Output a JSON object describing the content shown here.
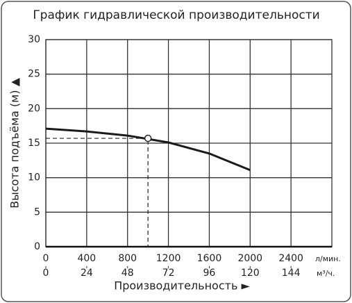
{
  "chart_data": {
    "type": "line",
    "title": "График гидравлической производительности",
    "x_label": "Производительность ►",
    "y_label": "Высота подъёма (м) ▲",
    "x_unit": "л/мин.",
    "x2_unit": "м³/ч.",
    "x": [
      0,
      400,
      800,
      1200,
      1600,
      2000
    ],
    "series": [
      {
        "color": "#1a1a1a",
        "values": [
          17.1,
          16.7,
          16.1,
          15.1,
          13.5,
          11.1
        ]
      }
    ],
    "marker": {
      "x": 1000,
      "y": 15.7
    },
    "xlim": [
      0,
      2800
    ],
    "xticks": [
      0,
      400,
      800,
      1200,
      1600,
      2000,
      2400
    ],
    "x2lim": [
      0,
      168
    ],
    "x2ticks": [
      0,
      24,
      48,
      72,
      96,
      120,
      144
    ],
    "ylim": [
      0,
      30
    ],
    "yticks": [
      0,
      5,
      10,
      15,
      20,
      25,
      30
    ],
    "grid": true
  }
}
